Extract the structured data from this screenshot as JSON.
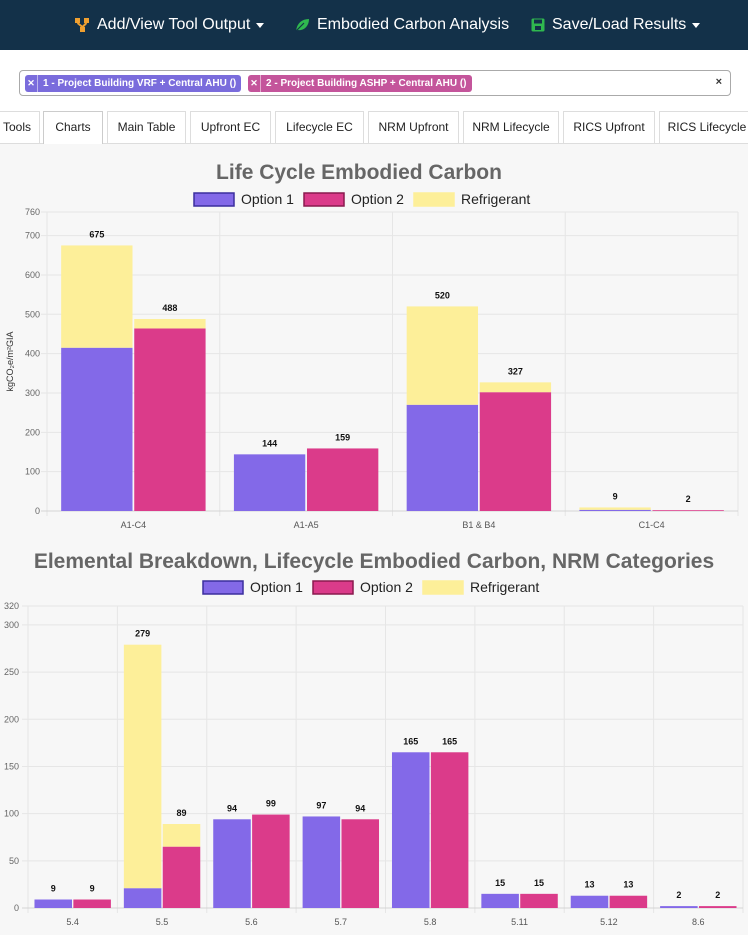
{
  "navbar": {
    "items": [
      {
        "label": "Add/View Tool Output",
        "icon": "hierarchy-icon",
        "icon_color": "#f0a030"
      },
      {
        "label": "Embodied Carbon Analysis",
        "icon": "leaf-icon",
        "icon_color": "#2fb84f"
      },
      {
        "label": "Save/Load Results",
        "icon": "save-icon",
        "icon_color": "#2fb84f"
      }
    ]
  },
  "selector": {
    "chips": [
      {
        "label": "1 - Project Building VRF + Central AHU ()",
        "color": "#7a6cdc"
      },
      {
        "label": "2 - Project Building ASHP + Central AHU ()",
        "color": "#c4559b"
      }
    ],
    "clear_label": "×"
  },
  "tabs": [
    {
      "label": "Tools"
    },
    {
      "label": "Charts"
    },
    {
      "label": "Main Table"
    },
    {
      "label": "Upfront EC"
    },
    {
      "label": "Lifecycle EC"
    },
    {
      "label": "NRM Upfront"
    },
    {
      "label": "NRM Lifecycle"
    },
    {
      "label": "RICS Upfront"
    },
    {
      "label": "RICS Lifecycle"
    }
  ],
  "colors": {
    "option1": "#8369e8",
    "option2": "#db3b8a",
    "refrigerant": "#fdef99",
    "grid": "#e6e6e6"
  },
  "chart_data": [
    {
      "type": "bar",
      "stacked": true,
      "title": "Life Cycle Embodied Carbon",
      "legend": [
        "Option 1",
        "Option 2",
        "Refrigerant"
      ],
      "ylabel": "kgCO₂e/m²GIA",
      "xlabel": "",
      "ylim": [
        0,
        760
      ],
      "yticks": [
        0,
        100,
        200,
        300,
        400,
        500,
        600,
        700,
        760
      ],
      "categories": [
        "A1-C4",
        "A1-A5",
        "B1 & B4",
        "C1-C4"
      ],
      "series": [
        {
          "name": "Option 1",
          "base": [
            415,
            144,
            270,
            3
          ],
          "refrigerant": [
            260,
            0,
            250,
            6
          ],
          "totals": [
            675,
            144,
            520,
            9
          ]
        },
        {
          "name": "Option 2",
          "base": [
            464,
            159,
            302,
            2
          ],
          "refrigerant": [
            24,
            0,
            25,
            0
          ],
          "totals": [
            488,
            159,
            327,
            2
          ]
        }
      ]
    },
    {
      "type": "bar",
      "stacked": true,
      "title": "Elemental Breakdown, Lifecycle Embodied Carbon, NRM Categories",
      "legend": [
        "Option 1",
        "Option 2",
        "Refrigerant"
      ],
      "ylabel": "",
      "xlabel": "",
      "ylim": [
        0,
        320
      ],
      "yticks": [
        0,
        50,
        100,
        150,
        200,
        250,
        300,
        320
      ],
      "categories": [
        "5.4",
        "5.5",
        "5.6",
        "5.7",
        "5.8",
        "5.11",
        "5.12",
        "8.6"
      ],
      "series": [
        {
          "name": "Option 1",
          "base": [
            9,
            21,
            94,
            97,
            165,
            15,
            13,
            2
          ],
          "refrigerant": [
            0,
            258,
            0,
            0,
            0,
            0,
            0,
            0
          ],
          "totals": [
            9,
            279,
            94,
            97,
            165,
            15,
            13,
            2
          ]
        },
        {
          "name": "Option 2",
          "base": [
            9,
            65,
            99,
            94,
            165,
            15,
            13,
            2
          ],
          "refrigerant": [
            0,
            24,
            0,
            0,
            0,
            0,
            0,
            0
          ],
          "totals": [
            9,
            89,
            99,
            94,
            165,
            15,
            13,
            2
          ]
        }
      ]
    }
  ]
}
